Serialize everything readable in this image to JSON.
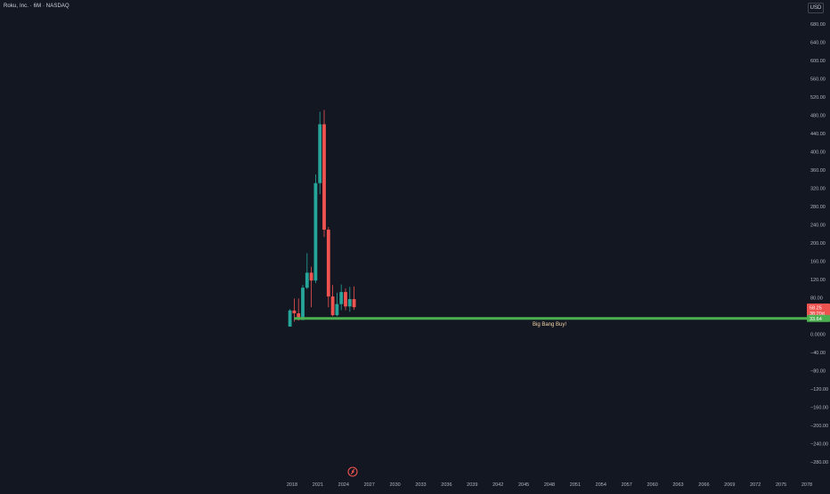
{
  "header": {
    "symbol_title": "Roku, Inc. · 6M · NASDAQ",
    "currency": "USD"
  },
  "colors": {
    "background": "#131722",
    "up": "#26a69a",
    "down": "#ef5350",
    "support_line": "#4caf50",
    "axis_text": "#b2b5be",
    "annotation_text": "#f5d7a8"
  },
  "price_axis": {
    "ticks": [
      "680.00",
      "640.00",
      "600.00",
      "560.00",
      "520.00",
      "480.00",
      "440.00",
      "400.00",
      "360.00",
      "320.00",
      "280.00",
      "240.00",
      "200.00",
      "160.00",
      "120.00",
      "80.00",
      "40.00",
      "0.0000",
      "−40.00",
      "−80.00",
      "−120.00",
      "−160.00",
      "−200.00",
      "−240.00",
      "−280.00"
    ],
    "labels": {
      "last_price": "58.25",
      "countdown": "38:20d",
      "support": "33.64"
    }
  },
  "time_axis": {
    "ticks": [
      "2018",
      "2021",
      "2024",
      "2027",
      "2030",
      "2033",
      "2036",
      "2039",
      "2042",
      "2045",
      "2048",
      "2051",
      "2054",
      "2057",
      "2060",
      "2063",
      "2066",
      "2069",
      "2072",
      "2075",
      "2078"
    ]
  },
  "drawings": {
    "support_label": "Big Bang Buy!",
    "support_price": 33.64
  },
  "tradingview_logo": "tradingview-logo-icon",
  "chart_data": {
    "type": "candlestick",
    "title": "Roku, Inc. · 6M · NASDAQ",
    "xlabel": "",
    "ylabel": "",
    "ylim": [
      -300,
      700
    ],
    "x_range": [
      "2017-07",
      "2078-01"
    ],
    "grid": false,
    "candles": [
      {
        "date": "2017-07",
        "open": 15.8,
        "high": 54.0,
        "low": 15.8,
        "close": 51.2
      },
      {
        "date": "2018-01",
        "open": 51.0,
        "high": 77.4,
        "low": 26.5,
        "close": 44.8
      },
      {
        "date": "2018-07",
        "open": 44.8,
        "high": 77.4,
        "low": 29.1,
        "close": 30.6
      },
      {
        "date": "2019-01",
        "open": 30.6,
        "high": 107.0,
        "low": 29.6,
        "close": 101.0
      },
      {
        "date": "2019-07",
        "open": 101.0,
        "high": 176.6,
        "low": 98.0,
        "close": 133.9
      },
      {
        "date": "2020-01",
        "open": 133.9,
        "high": 147.0,
        "low": 58.2,
        "close": 116.7
      },
      {
        "date": "2020-07",
        "open": 116.7,
        "high": 349.0,
        "low": 111.0,
        "close": 330.2
      },
      {
        "date": "2021-01",
        "open": 330.2,
        "high": 486.7,
        "low": 306.0,
        "close": 459.3
      },
      {
        "date": "2021-07",
        "open": 459.3,
        "high": 490.8,
        "low": 212.3,
        "close": 228.2
      },
      {
        "date": "2022-01",
        "open": 228.2,
        "high": 234.0,
        "low": 58.2,
        "close": 81.8
      },
      {
        "date": "2022-07",
        "open": 81.8,
        "high": 106.9,
        "low": 38.3,
        "close": 40.7
      },
      {
        "date": "2023-01",
        "open": 40.7,
        "high": 90.0,
        "low": 38.3,
        "close": 65.1
      },
      {
        "date": "2023-07",
        "open": 65.1,
        "high": 108.0,
        "low": 51.8,
        "close": 91.5
      },
      {
        "date": "2024-01",
        "open": 91.5,
        "high": 99.8,
        "low": 51.6,
        "close": 59.9
      },
      {
        "date": "2024-07",
        "open": 59.9,
        "high": 103.0,
        "low": 48.3,
        "close": 76.0
      },
      {
        "date": "2025-01",
        "open": 76.0,
        "high": 104.0,
        "low": 52.4,
        "close": 58.25
      }
    ]
  }
}
